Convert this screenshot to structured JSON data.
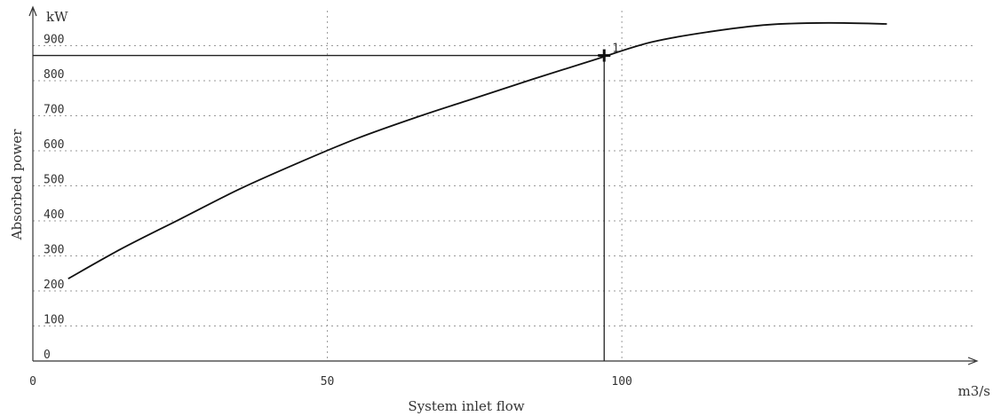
{
  "chart_data": {
    "type": "line",
    "xlabel": "System inlet flow",
    "ylabel": "Absorbed power",
    "x_unit": "m3/s",
    "y_unit": "kW",
    "xlim": [
      0,
      160
    ],
    "ylim": [
      0,
      1000
    ],
    "x_ticks": [
      0,
      50,
      100
    ],
    "y_ticks": [
      0,
      100,
      200,
      300,
      400,
      500,
      600,
      700,
      800,
      900
    ],
    "grid": true,
    "series": [
      {
        "color": "#111111",
        "x": [
          6,
          15,
          25,
          35,
          45,
          55,
          65,
          75,
          85,
          95,
          105,
          115,
          125,
          135,
          145
        ],
        "y": [
          235,
          320,
          405,
          490,
          565,
          635,
          695,
          750,
          805,
          858,
          910,
          940,
          960,
          965,
          962
        ]
      }
    ],
    "operating_point": {
      "label": "1",
      "x": 97,
      "y": 872
    }
  }
}
